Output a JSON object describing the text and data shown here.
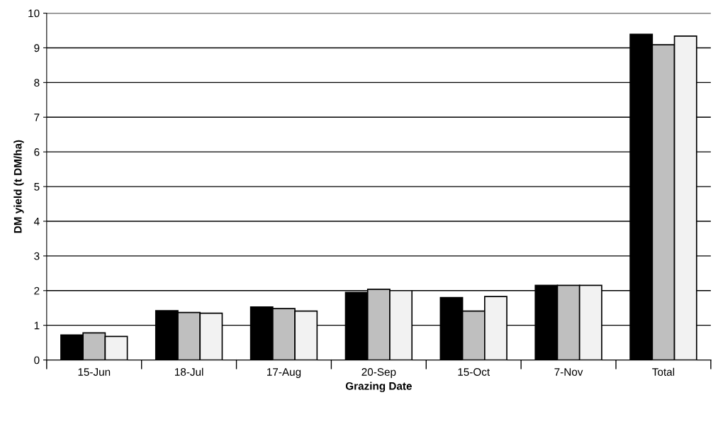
{
  "chart_data": {
    "type": "bar",
    "xlabel": "Grazing Date",
    "ylabel": "DM yield (t DM/ha)",
    "categories": [
      "15-Jun",
      "18-Jul",
      "17-Aug",
      "20-Sep",
      "15-Oct",
      "7-Nov",
      "Total"
    ],
    "series": [
      {
        "color": "#000000",
        "values": [
          0.72,
          1.42,
          1.53,
          1.95,
          1.8,
          2.15,
          9.39
        ]
      },
      {
        "color": "#bfbfbf",
        "values": [
          0.78,
          1.37,
          1.48,
          2.04,
          1.41,
          2.15,
          9.09
        ]
      },
      {
        "color": "#f2f2f2",
        "values": [
          0.68,
          1.35,
          1.41,
          2.0,
          1.83,
          2.15,
          9.34
        ]
      }
    ],
    "ylim": [
      0,
      10
    ],
    "yticks": [
      0,
      1,
      2,
      3,
      4,
      5,
      6,
      7,
      8,
      9,
      10
    ],
    "grid": "y"
  }
}
